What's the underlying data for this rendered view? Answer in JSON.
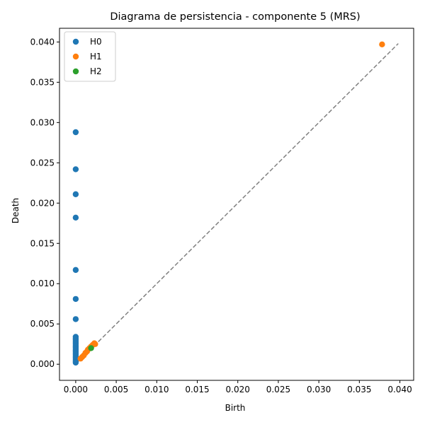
{
  "chart_data": {
    "type": "scatter",
    "title": "Diagrama de persistencia - componente 5 (MRS)",
    "xlabel": "Birth",
    "ylabel": "Death",
    "xlim": [
      -0.002,
      0.0417
    ],
    "ylim": [
      -0.002,
      0.0417
    ],
    "xticks": [
      0.0,
      0.005,
      0.01,
      0.015,
      0.02,
      0.025,
      0.03,
      0.035,
      0.04
    ],
    "yticks": [
      0.0,
      0.005,
      0.01,
      0.015,
      0.02,
      0.025,
      0.03,
      0.035,
      0.04
    ],
    "tick_labels": [
      "0.000",
      "0.005",
      "0.010",
      "0.015",
      "0.020",
      "0.025",
      "0.030",
      "0.035",
      "0.040"
    ],
    "grid": false,
    "legend_position": "top-left",
    "diagonal": {
      "from": 0.0,
      "to": 0.0398,
      "color": "#808080",
      "style": "dashed"
    },
    "series": [
      {
        "name": "H0",
        "color": "#1f77b4",
        "points": [
          [
            0.0,
            0.0288
          ],
          [
            0.0,
            0.0242
          ],
          [
            0.0,
            0.0211
          ],
          [
            0.0,
            0.0182
          ],
          [
            0.0,
            0.0117
          ],
          [
            0.0,
            0.0081
          ],
          [
            0.0,
            0.0056
          ],
          [
            0.0,
            0.0034
          ],
          [
            0.0,
            0.0032
          ],
          [
            0.0,
            0.003
          ],
          [
            0.0,
            0.0028
          ],
          [
            0.0,
            0.0026
          ],
          [
            0.0,
            0.0024
          ],
          [
            0.0,
            0.0022
          ],
          [
            0.0,
            0.002
          ],
          [
            0.0,
            0.0018
          ],
          [
            0.0,
            0.0016
          ],
          [
            0.0,
            0.0014
          ],
          [
            0.0,
            0.0012
          ],
          [
            0.0,
            0.001
          ],
          [
            0.0,
            0.0008
          ],
          [
            0.0,
            0.0006
          ],
          [
            0.0,
            0.0004
          ],
          [
            0.0,
            0.0002
          ]
        ]
      },
      {
        "name": "H1",
        "color": "#ff7f0e",
        "points": [
          [
            0.0378,
            0.0397
          ],
          [
            0.0006,
            0.0007
          ],
          [
            0.0008,
            0.0009
          ],
          [
            0.001,
            0.0011
          ],
          [
            0.0012,
            0.0014
          ],
          [
            0.0014,
            0.0016
          ],
          [
            0.0015,
            0.0018
          ],
          [
            0.0017,
            0.002
          ],
          [
            0.0019,
            0.0022
          ],
          [
            0.0021,
            0.0024
          ],
          [
            0.0023,
            0.0026
          ],
          [
            0.0024,
            0.0025
          ]
        ]
      },
      {
        "name": "H2",
        "color": "#2ca02c",
        "points": [
          [
            0.0019,
            0.002
          ]
        ]
      }
    ]
  }
}
